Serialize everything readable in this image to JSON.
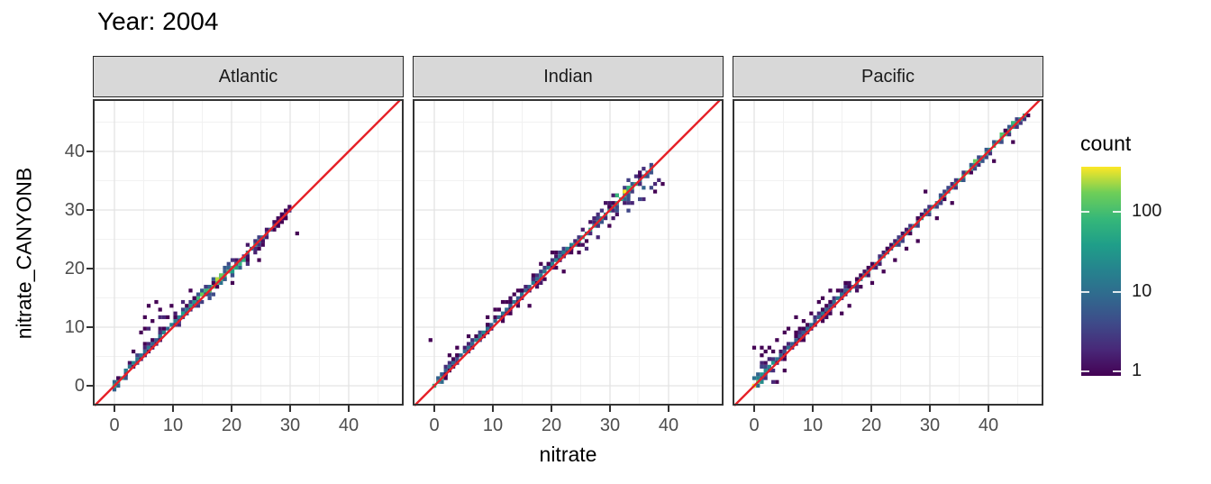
{
  "title": "Year: 2004",
  "axes": {
    "x_label": "nitrate",
    "y_label": "nitrate_CANYONB",
    "x_ticks": [
      0,
      10,
      20,
      30,
      40
    ],
    "y_ticks": [
      0,
      10,
      20,
      30,
      40
    ],
    "x_range": [
      -3.7,
      49.4
    ],
    "y_range": [
      -3.4,
      48.9
    ]
  },
  "legend": {
    "title": "count",
    "scale": "log10",
    "max_count": 350,
    "ticks": [
      {
        "label": "100",
        "pos": 0.216
      },
      {
        "label": "10",
        "pos": 0.6
      },
      {
        "label": "1",
        "pos": 0.978
      }
    ]
  },
  "colors": {
    "identity_line": "#e62128",
    "grid_major": "#e3e3e3",
    "grid_minor": "#f1f1f1",
    "panel_border": "#333333",
    "strip_bg": "#d8d8d8",
    "tick_text": "#4d4d4d",
    "viridis": [
      "#440154",
      "#482878",
      "#3e4a89",
      "#31688e",
      "#26828e",
      "#1f9e89",
      "#35b779",
      "#6ece58",
      "#fde725"
    ]
  },
  "seed": 11,
  "chart_data": {
    "type": "heatmap",
    "subtype": "bin2d",
    "title": "Year: 2004",
    "xlabel": "nitrate",
    "ylabel": "nitrate_CANYONB",
    "binwidth": 0.65,
    "identity_line": true,
    "grid": true,
    "legend_position": "right",
    "facets": [
      {
        "label": "Atlantic",
        "segments": [
          {
            "x0": 0,
            "x1": 2,
            "core": 60,
            "halo": 8,
            "width": 1,
            "dy": 0.2
          },
          {
            "x0": 2,
            "x1": 5,
            "core": 15,
            "halo": 3,
            "width": 1,
            "dy": 0.5
          },
          {
            "x0": 5,
            "x1": 8,
            "core": 10,
            "halo": 2,
            "width": 2,
            "dy": 0.6
          },
          {
            "x0": 8,
            "x1": 11,
            "core": 15,
            "halo": 3,
            "width": 2,
            "dy": 0.5
          },
          {
            "x0": 11,
            "x1": 14,
            "core": 30,
            "halo": 4,
            "width": 2,
            "dy": 0.7
          },
          {
            "x0": 14,
            "x1": 16,
            "core": 60,
            "halo": 6,
            "width": 2,
            "dy": 0.7
          },
          {
            "x0": 16,
            "x1": 20,
            "core": 120,
            "halo": 10,
            "width": 2,
            "dy": 0.5
          },
          {
            "x0": 20,
            "x1": 23,
            "core": 60,
            "halo": 6,
            "width": 2,
            "dy": -0.5
          },
          {
            "x0": 23,
            "x1": 26,
            "core": 20,
            "halo": 3,
            "width": 2,
            "dy": -0.3
          },
          {
            "x0": 26,
            "x1": 28,
            "core": 6,
            "halo": 2,
            "width": 1,
            "dy": 0
          },
          {
            "x0": 28,
            "x1": 30.3,
            "core": 2,
            "halo": 1,
            "width": 1,
            "dy": 0
          }
        ],
        "hotspots": [
          [
            17.3,
            18,
            250
          ],
          [
            18,
            18.7,
            150
          ],
          [
            0.3,
            0,
            80
          ],
          [
            14.7,
            15.4,
            150
          ]
        ],
        "outliers": [
          [
            5,
            10,
            1
          ],
          [
            5.5,
            12,
            1
          ],
          [
            6,
            13.5,
            1
          ],
          [
            6.5,
            11,
            1
          ],
          [
            7,
            14,
            1
          ],
          [
            7.5,
            12,
            2
          ],
          [
            8,
            13,
            1
          ],
          [
            4.5,
            9,
            1
          ],
          [
            9,
            12,
            1
          ],
          [
            6,
            9.5,
            2
          ],
          [
            31.2,
            26,
            1
          ],
          [
            24.5,
            21.5,
            1
          ],
          [
            20,
            17.5,
            1
          ],
          [
            13,
            16,
            1
          ],
          [
            10,
            13.5,
            1
          ],
          [
            3,
            6,
            1
          ],
          [
            8.5,
            11.5,
            2
          ],
          [
            12,
            14.5,
            2
          ]
        ]
      },
      {
        "label": "Indian",
        "segments": [
          {
            "x0": 0,
            "x1": 1.5,
            "core": 60,
            "halo": 10,
            "width": 1,
            "dy": 0.3
          },
          {
            "x0": 1.5,
            "x1": 5,
            "core": 8,
            "halo": 2,
            "width": 1,
            "dy": 0.6
          },
          {
            "x0": 5,
            "x1": 9,
            "core": 15,
            "halo": 3,
            "width": 1,
            "dy": 0.7
          },
          {
            "x0": 9,
            "x1": 13,
            "core": 10,
            "halo": 2,
            "width": 2,
            "dy": 0.6
          },
          {
            "x0": 13,
            "x1": 17,
            "core": 10,
            "halo": 2,
            "width": 2,
            "dy": 0.6
          },
          {
            "x0": 17,
            "x1": 21,
            "core": 15,
            "halo": 3,
            "width": 2,
            "dy": 0.4
          },
          {
            "x0": 21,
            "x1": 24,
            "core": 15,
            "halo": 3,
            "width": 2,
            "dy": 0.2
          },
          {
            "x0": 24,
            "x1": 28,
            "core": 30,
            "halo": 4,
            "width": 2,
            "dy": 0
          },
          {
            "x0": 28,
            "x1": 31,
            "core": 30,
            "halo": 5,
            "width": 3,
            "dy": 0
          },
          {
            "x0": 31,
            "x1": 35,
            "core": 60,
            "halo": 8,
            "width": 3,
            "dy": 0.3
          },
          {
            "x0": 35,
            "x1": 37.5,
            "core": 15,
            "halo": 4,
            "width": 2,
            "dy": 0
          }
        ],
        "hotspots": [
          [
            32.3,
            33.2,
            350
          ],
          [
            31.5,
            32.4,
            80
          ],
          [
            33,
            33.8,
            80
          ],
          [
            0,
            0.3,
            70
          ]
        ],
        "outliers": [
          [
            -0.7,
            8,
            1
          ],
          [
            4,
            6.5,
            1
          ],
          [
            9,
            11.5,
            1
          ],
          [
            12,
            14.5,
            1
          ],
          [
            14,
            16.5,
            1
          ],
          [
            20,
            22.5,
            1
          ],
          [
            22,
            19.5,
            1
          ],
          [
            25,
            22.5,
            1
          ],
          [
            16,
            13.8,
            1
          ],
          [
            39,
            34.5,
            1
          ],
          [
            38,
            33,
            1
          ],
          [
            37.5,
            34.5,
            2
          ],
          [
            36,
            32,
            2
          ],
          [
            38.5,
            35,
            2
          ],
          [
            33,
            30,
            4
          ],
          [
            34,
            31,
            2
          ],
          [
            35,
            32,
            4
          ],
          [
            36,
            33.5,
            8
          ],
          [
            37,
            34,
            4
          ],
          [
            26,
            23.5,
            2
          ],
          [
            28,
            25.5,
            2
          ],
          [
            30,
            27.5,
            1
          ],
          [
            18,
            20.5,
            1
          ],
          [
            10.5,
            13,
            1
          ],
          [
            6,
            8.5,
            1
          ],
          [
            2.5,
            5,
            1
          ]
        ]
      },
      {
        "label": "Pacific",
        "segments": [
          {
            "x0": 0,
            "x1": 1.5,
            "core": 120,
            "halo": 20,
            "width": 2,
            "dy": 0.2
          },
          {
            "x0": 1.5,
            "x1": 4,
            "core": 30,
            "halo": 5,
            "width": 2,
            "dy": 0.4
          },
          {
            "x0": 4,
            "x1": 8,
            "core": 8,
            "halo": 2,
            "width": 2,
            "dy": 0.5
          },
          {
            "x0": 8,
            "x1": 12,
            "core": 8,
            "halo": 2,
            "width": 2,
            "dy": 0.5
          },
          {
            "x0": 12,
            "x1": 16,
            "core": 10,
            "halo": 2,
            "width": 2,
            "dy": 0.3
          },
          {
            "x0": 16,
            "x1": 20,
            "core": 15,
            "halo": 2,
            "width": 2,
            "dy": 0.2
          },
          {
            "x0": 20,
            "x1": 24,
            "core": 15,
            "halo": 2,
            "width": 1,
            "dy": 0
          },
          {
            "x0": 24,
            "x1": 28,
            "core": 15,
            "halo": 3,
            "width": 1,
            "dy": 0
          },
          {
            "x0": 28,
            "x1": 32,
            "core": 30,
            "halo": 3,
            "width": 1,
            "dy": 0
          },
          {
            "x0": 32,
            "x1": 36,
            "core": 40,
            "halo": 4,
            "width": 1,
            "dy": 0
          },
          {
            "x0": 36,
            "x1": 40,
            "core": 60,
            "halo": 5,
            "width": 1,
            "dy": 0
          },
          {
            "x0": 40,
            "x1": 44,
            "core": 60,
            "halo": 5,
            "width": 1,
            "dy": 0
          },
          {
            "x0": 44,
            "x1": 46.3,
            "core": 40,
            "halo": 3,
            "width": 1,
            "dy": 0
          }
        ],
        "hotspots": [
          [
            0.3,
            0,
            350
          ],
          [
            38,
            38.2,
            150
          ],
          [
            42.5,
            42.7,
            120
          ],
          [
            36.5,
            36.7,
            120
          ],
          [
            44.5,
            44.7,
            80
          ],
          [
            0.5,
            2,
            8
          ],
          [
            1,
            3,
            4
          ]
        ],
        "outliers": [
          [
            7,
            12,
            1
          ],
          [
            4,
            8,
            1
          ],
          [
            2,
            6,
            1
          ],
          [
            3,
            6,
            1
          ],
          [
            5,
            9,
            1
          ],
          [
            6,
            10,
            1
          ],
          [
            8.5,
            11,
            1
          ],
          [
            9.5,
            12.5,
            1
          ],
          [
            12,
            15,
            1
          ],
          [
            13,
            16.5,
            1
          ],
          [
            11,
            14,
            1
          ],
          [
            29.5,
            33,
            1
          ],
          [
            28,
            25,
            1
          ],
          [
            26,
            23.5,
            1
          ],
          [
            24,
            21.5,
            1
          ],
          [
            31,
            28.5,
            1
          ],
          [
            20,
            17.5,
            1
          ],
          [
            22,
            19.5,
            1
          ],
          [
            15,
            12.5,
            1
          ],
          [
            44.5,
            41.8,
            1
          ],
          [
            2.8,
            4.5,
            2
          ],
          [
            1.5,
            5,
            1
          ],
          [
            16,
            13.5,
            1
          ],
          [
            34,
            31.5,
            1
          ],
          [
            41,
            38.5,
            1
          ],
          [
            0,
            6.5,
            1
          ],
          [
            1,
            6.5,
            1
          ],
          [
            2.5,
            6.3,
            1
          ],
          [
            3,
            0.5,
            2
          ],
          [
            4,
            0.8,
            1
          ],
          [
            1.5,
            4,
            2
          ],
          [
            5.5,
            2.8,
            1
          ]
        ]
      }
    ]
  }
}
